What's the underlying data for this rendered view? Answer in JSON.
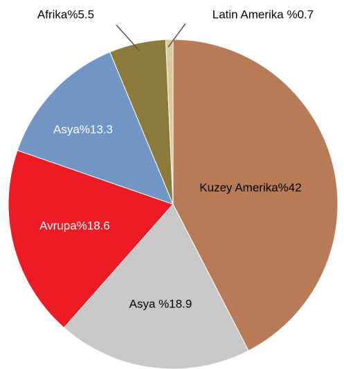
{
  "chart_data": {
    "type": "pie",
    "labels": [
      "Kuzey Amerika%42",
      "Asya %18.9",
      "Avrupa%18.6",
      "Asya%13.3",
      "Afrika%5.5",
      "Latin Amerika %0.7"
    ],
    "values": [
      42,
      18.9,
      18.6,
      13.3,
      5.5,
      0.7
    ],
    "colors": [
      "#b97b57",
      "#c8c8c8",
      "#ed1c24",
      "#7195c5",
      "#8c7a3b",
      "#d9c99b"
    ]
  }
}
